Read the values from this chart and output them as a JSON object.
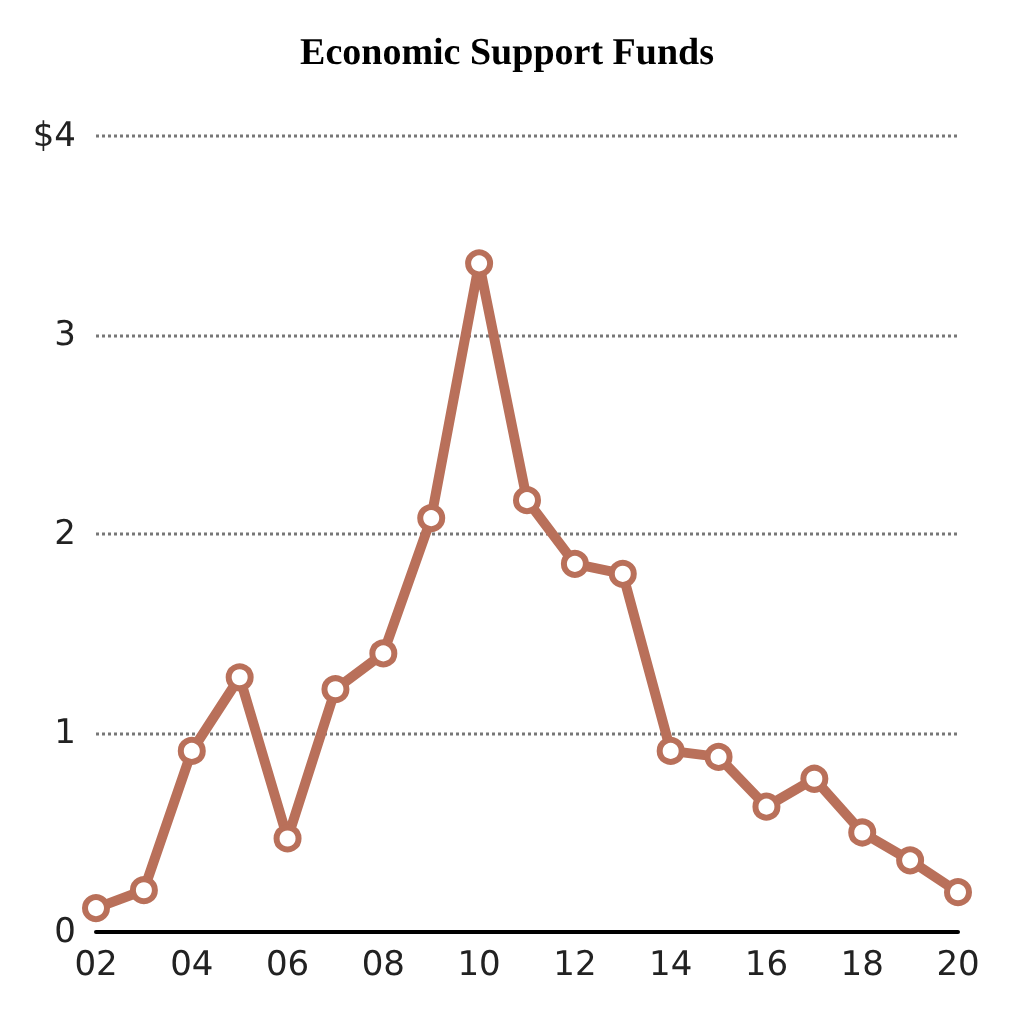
{
  "chart_data": {
    "type": "line",
    "title": "Economic Support Funds",
    "categories": [
      "02",
      null,
      "04",
      null,
      "06",
      null,
      "08",
      null,
      "10",
      null,
      "12",
      null,
      "14",
      null,
      "16",
      null,
      "18",
      null,
      "20"
    ],
    "series": [
      {
        "color": "#b9705a",
        "values": [
          0.12,
          0.21,
          0.91,
          1.28,
          0.47,
          1.22,
          1.4,
          2.08,
          3.36,
          2.17,
          1.85,
          1.8,
          0.91,
          0.88,
          0.63,
          0.77,
          0.5,
          0.36,
          0.2
        ]
      }
    ],
    "ylim": [
      0,
      4
    ],
    "yticks": [
      0,
      1,
      2,
      3,
      {
        "value": 4,
        "label": "$4"
      }
    ],
    "grid": "y",
    "marker": "circle",
    "line_style": "solid"
  }
}
